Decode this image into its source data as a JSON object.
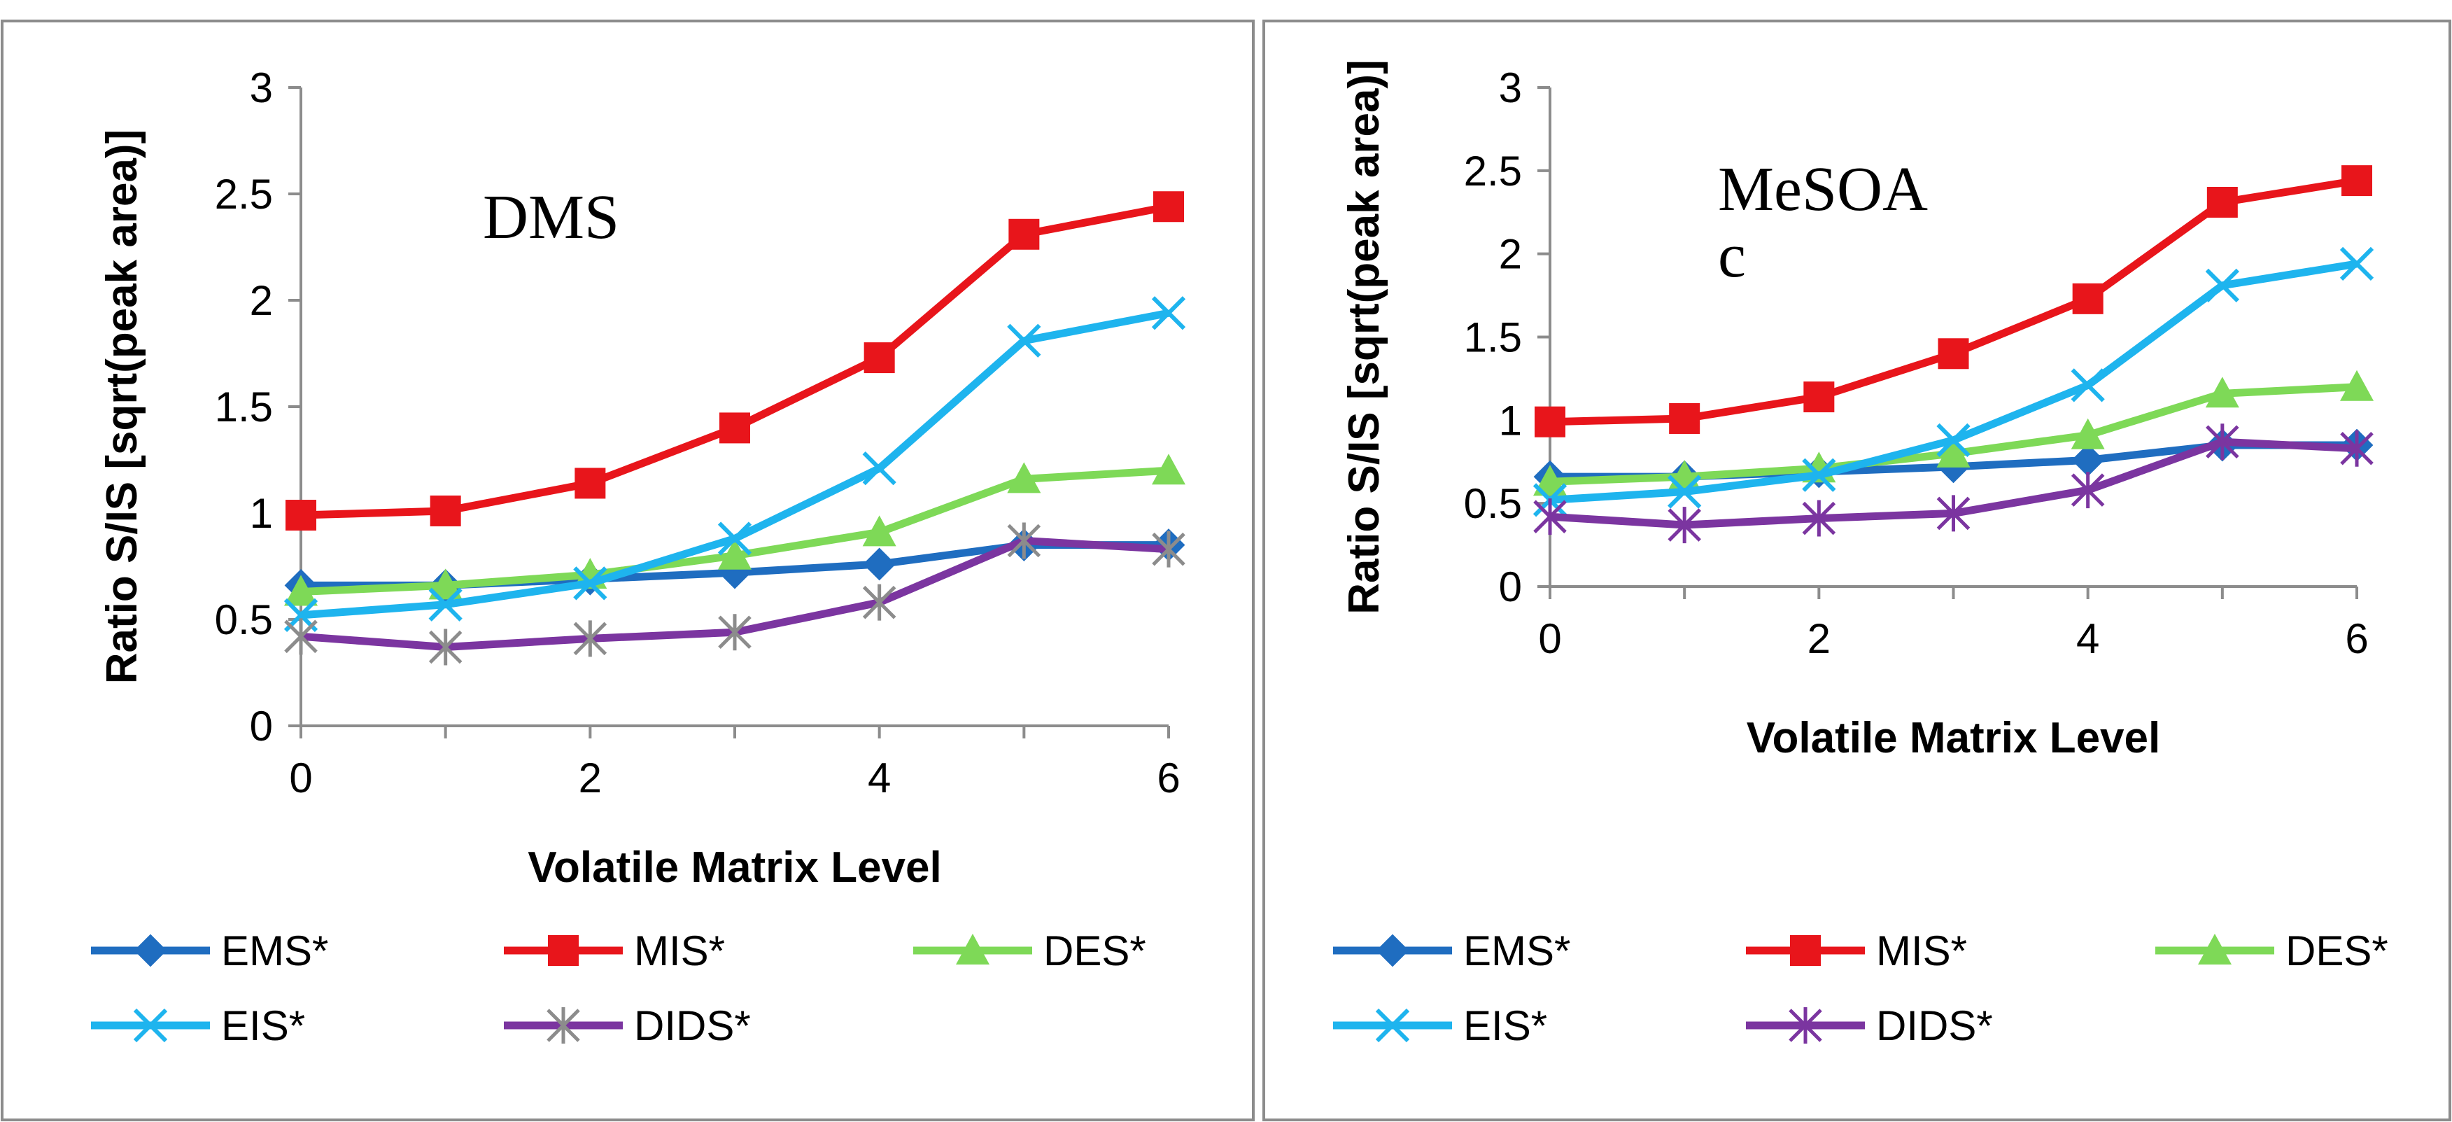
{
  "chart_data": [
    {
      "type": "line",
      "annotation_lines": [
        "DMS"
      ],
      "xlabel": "Volatile Matrix Level",
      "ylabel": "Ratio S/IS [sqrt(peak area)]",
      "xlim": [
        0,
        6
      ],
      "ylim": [
        0,
        3
      ],
      "xticks": [
        0,
        2,
        4,
        6
      ],
      "xtick_labels": [
        "0",
        "2",
        "4",
        "6"
      ],
      "yticks": [
        0,
        0.5,
        1,
        1.5,
        2,
        2.5,
        3
      ],
      "ytick_labels": [
        "0",
        "0.5",
        "1",
        "1.5",
        "2",
        "2.5",
        "3"
      ],
      "x": [
        0,
        1,
        2,
        3,
        4,
        5,
        6
      ],
      "legend": "bottom",
      "series": [
        {
          "name": "EMS*",
          "color": "#1f6dc0",
          "marker": "diamond",
          "marker_color": "#1f6dc0",
          "values": [
            0.66,
            0.66,
            0.69,
            0.72,
            0.76,
            0.85,
            0.85
          ]
        },
        {
          "name": "MIS*",
          "color": "#e8151b",
          "marker": "square",
          "marker_color": "#e8151b",
          "values": [
            0.99,
            1.01,
            1.14,
            1.4,
            1.73,
            2.31,
            2.44
          ]
        },
        {
          "name": "DES*",
          "color": "#7ed957",
          "marker": "triangle",
          "marker_color": "#7ed957",
          "values": [
            0.63,
            0.66,
            0.71,
            0.8,
            0.91,
            1.16,
            1.2
          ]
        },
        {
          "name": "EIS*",
          "color": "#1eb4ee",
          "marker": "x",
          "marker_color": "#1eb4ee",
          "values": [
            0.52,
            0.57,
            0.67,
            0.88,
            1.21,
            1.81,
            1.94
          ]
        },
        {
          "name": "DIDS*",
          "color": "#7b35a0",
          "marker": "star",
          "marker_color": "#8c8c8c",
          "values": [
            0.42,
            0.37,
            0.41,
            0.44,
            0.58,
            0.87,
            0.83
          ]
        }
      ]
    },
    {
      "type": "line",
      "annotation_lines": [
        "MeSOA",
        "c"
      ],
      "xlabel": "Volatile Matrix Level",
      "ylabel": "Ratio S/IS [sqrt(peak area)]",
      "xlim": [
        0,
        6
      ],
      "ylim": [
        0,
        3
      ],
      "xticks": [
        0,
        2,
        4,
        6
      ],
      "xtick_labels": [
        "0",
        "2",
        "4",
        "6"
      ],
      "yticks": [
        0,
        0.5,
        1,
        1.5,
        2,
        2.5,
        3
      ],
      "ytick_labels": [
        "0",
        "0.5",
        "1",
        "1.5",
        "2",
        "2.5",
        "3"
      ],
      "x": [
        0,
        1,
        2,
        3,
        4,
        5,
        6
      ],
      "legend": "bottom",
      "series": [
        {
          "name": "EMS*",
          "color": "#1f6dc0",
          "marker": "diamond",
          "marker_color": "#1f6dc0",
          "values": [
            0.66,
            0.66,
            0.69,
            0.72,
            0.76,
            0.85,
            0.85
          ]
        },
        {
          "name": "MIS*",
          "color": "#e8151b",
          "marker": "square",
          "marker_color": "#e8151b",
          "values": [
            0.99,
            1.01,
            1.14,
            1.4,
            1.73,
            2.31,
            2.44
          ]
        },
        {
          "name": "DES*",
          "color": "#7ed957",
          "marker": "triangle",
          "marker_color": "#7ed957",
          "values": [
            0.63,
            0.66,
            0.71,
            0.8,
            0.91,
            1.16,
            1.2
          ]
        },
        {
          "name": "EIS*",
          "color": "#1eb4ee",
          "marker": "x",
          "marker_color": "#1eb4ee",
          "values": [
            0.52,
            0.57,
            0.67,
            0.88,
            1.21,
            1.81,
            1.94
          ]
        },
        {
          "name": "DIDS*",
          "color": "#7b35a0",
          "marker": "star",
          "marker_color": "#7b35a0",
          "values": [
            0.42,
            0.37,
            0.41,
            0.44,
            0.58,
            0.87,
            0.83
          ]
        }
      ]
    }
  ]
}
